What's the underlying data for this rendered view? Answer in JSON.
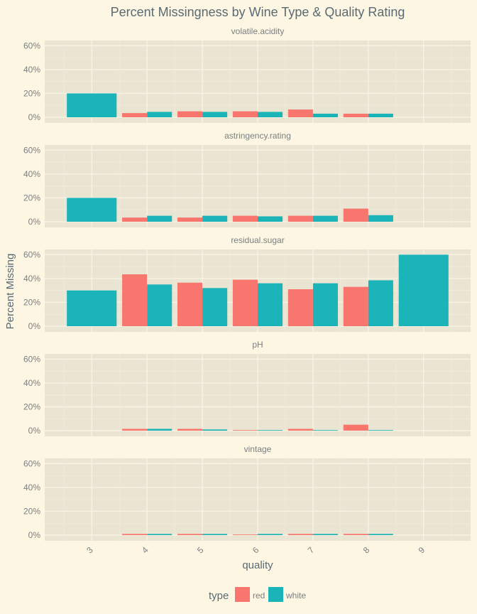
{
  "chart_data": {
    "type": "bar",
    "title": "Percent Missingness by Wine Type & Quality Rating",
    "xlabel": "quality",
    "ylabel": "Percent Missing",
    "ylim": [
      0,
      62
    ],
    "y_ticks": [
      0,
      20,
      40,
      60
    ],
    "y_tick_labels": [
      "0%",
      "20%",
      "40%",
      "60%"
    ],
    "categories": [
      "3",
      "4",
      "5",
      "6",
      "7",
      "8",
      "9"
    ],
    "legend": {
      "title": "type",
      "placement": "bottom",
      "entries": [
        {
          "label": "red",
          "color": "#f8766d"
        },
        {
          "label": "white",
          "color": "#1bb4b9"
        }
      ]
    },
    "facets": [
      {
        "label": "volatile.acidity",
        "series": [
          {
            "name": "red",
            "values": [
              null,
              3.5,
              5,
              5,
              6.5,
              3,
              null
            ]
          },
          {
            "name": "white",
            "values": [
              20,
              4.5,
              4.5,
              4.5,
              3,
              3,
              0
            ]
          }
        ]
      },
      {
        "label": "astringency.rating",
        "series": [
          {
            "name": "red",
            "values": [
              null,
              3.5,
              3.5,
              5,
              5,
              11,
              null
            ]
          },
          {
            "name": "white",
            "values": [
              20,
              5,
              5,
              4.5,
              5,
              5.5,
              0
            ]
          }
        ]
      },
      {
        "label": "residual.sugar",
        "series": [
          {
            "name": "red",
            "values": [
              null,
              43.5,
              36.5,
              39,
              31,
              33,
              null
            ]
          },
          {
            "name": "white",
            "values": [
              30,
              35,
              32,
              36,
              36,
              38.5,
              60
            ]
          }
        ]
      },
      {
        "label": "pH",
        "series": [
          {
            "name": "red",
            "values": [
              null,
              1.5,
              1.5,
              0.5,
              1.5,
              5,
              null
            ]
          },
          {
            "name": "white",
            "values": [
              0,
              1.5,
              1,
              0.5,
              0.5,
              0.5,
              0
            ]
          }
        ]
      },
      {
        "label": "vintage",
        "series": [
          {
            "name": "red",
            "values": [
              null,
              1,
              1,
              0.5,
              1,
              1,
              null
            ]
          },
          {
            "name": "white",
            "values": [
              0,
              1,
              1,
              1,
              1,
              1,
              0
            ]
          }
        ]
      }
    ]
  }
}
